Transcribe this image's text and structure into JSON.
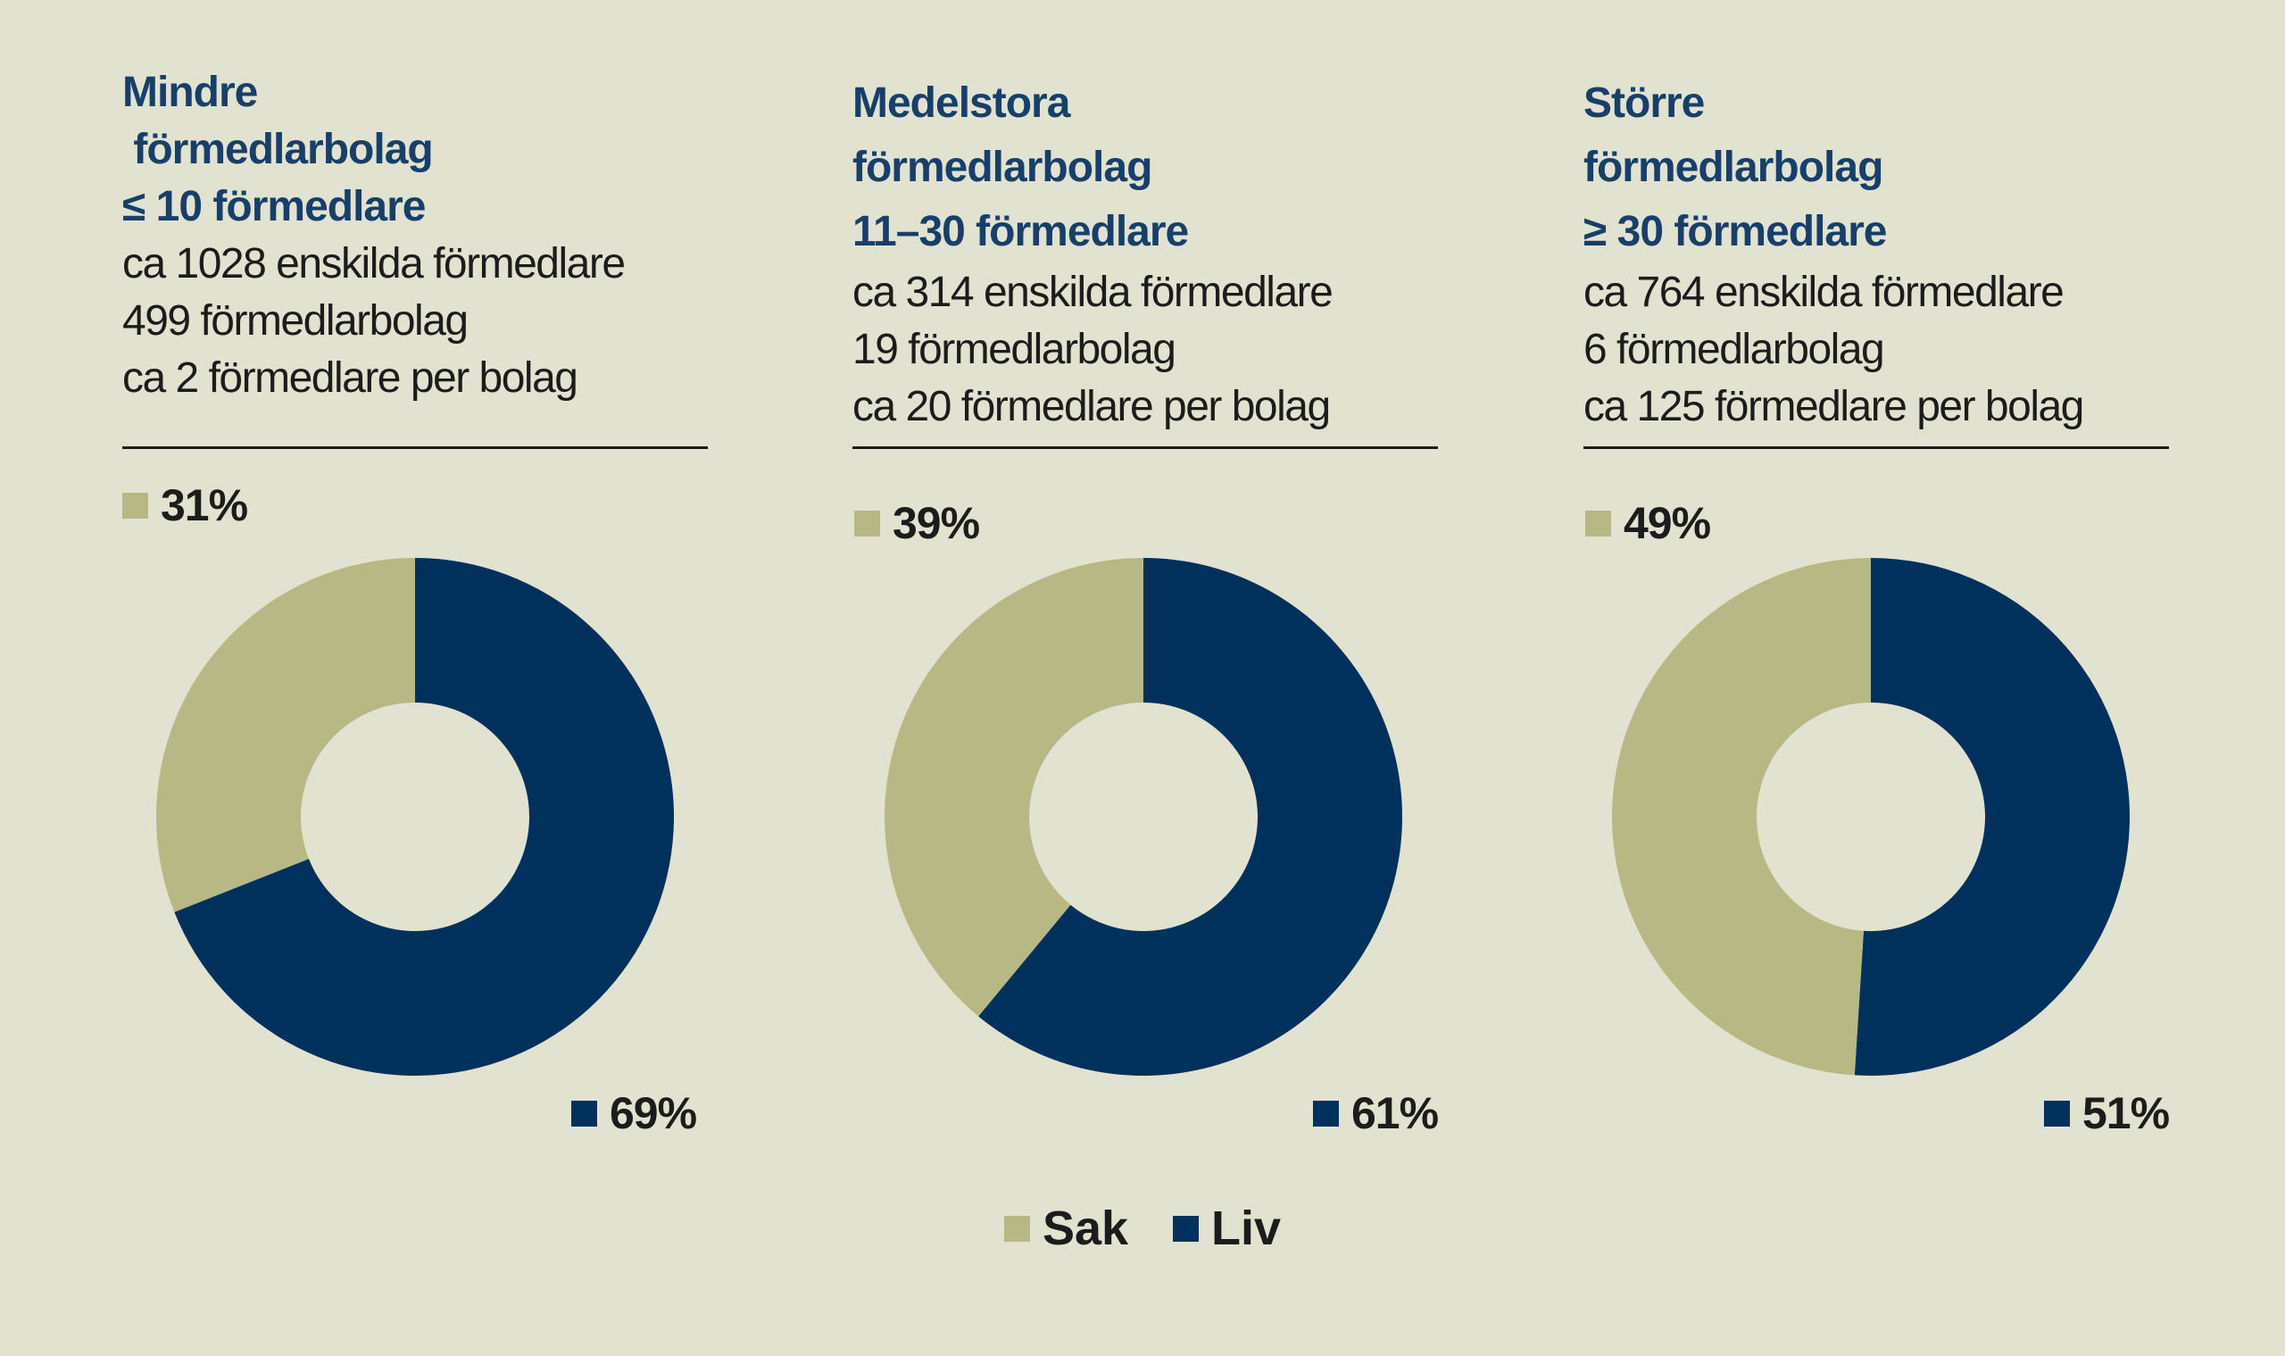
{
  "colors": {
    "background": "#e2e2d0",
    "sak": "#b8b885",
    "liv": "#00305c",
    "title": "#183f6a",
    "text": "#1c1c1c"
  },
  "chart_data": [
    {
      "type": "pie",
      "title": [
        "Mindre",
        " förmedlarbolag",
        "≤ 10 förmedlare"
      ],
      "subtitle": [
        "ca 1028 enskilda förmedlare",
        "499 förmedlarbolag",
        "ca 2 förmedlare per bolag"
      ],
      "categories": [
        "Sak",
        "Liv"
      ],
      "values": [
        31,
        69
      ],
      "labels": [
        "31%",
        "69%"
      ]
    },
    {
      "type": "pie",
      "title": [
        "Medelstora",
        "förmedlarbolag",
        "11–30 förmedlare"
      ],
      "subtitle": [
        "ca 314 enskilda förmedlare",
        "19 förmedlarbolag",
        "ca 20 förmedlare per bolag"
      ],
      "categories": [
        "Sak",
        "Liv"
      ],
      "values": [
        39,
        61
      ],
      "labels": [
        "39%",
        "61%"
      ]
    },
    {
      "type": "pie",
      "title": [
        "Större",
        "förmedlarbolag",
        "≥ 30 förmedlare"
      ],
      "subtitle": [
        "ca 764 enskilda förmedlare",
        "6 förmedlarbolag",
        "ca 125 förmedlare per bolag"
      ],
      "categories": [
        "Sak",
        "Liv"
      ],
      "values": [
        49,
        51
      ],
      "labels": [
        "49%",
        "51%"
      ]
    }
  ],
  "legend": [
    {
      "label": "Sak",
      "color": "#b8b885"
    },
    {
      "label": "Liv",
      "color": "#00305c"
    }
  ]
}
